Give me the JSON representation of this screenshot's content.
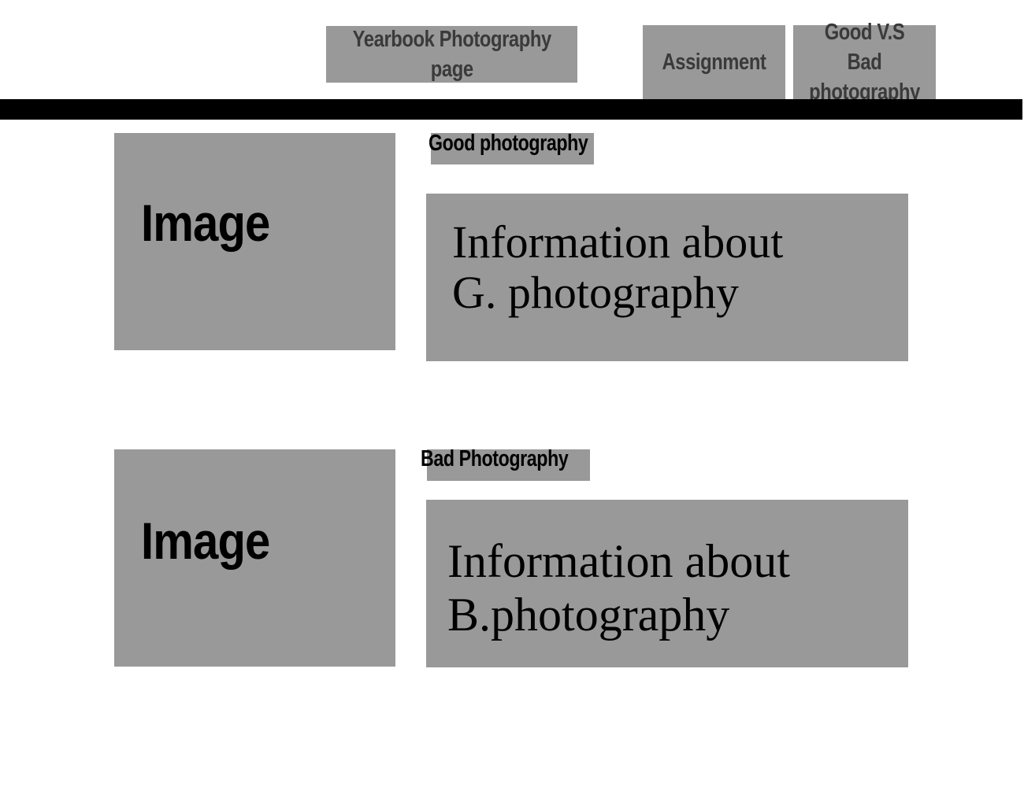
{
  "nav": {
    "title_label": "Yearbook Photography\npage",
    "assignment_label": "Assignment",
    "compare_label": "Good V.S Bad\nphotography"
  },
  "sections": [
    {
      "tag": "Good photography",
      "image_label": "Image",
      "info_lines": [
        "Information about",
        "G. photography"
      ]
    },
    {
      "tag": "Bad Photography",
      "image_label": "Image",
      "info_lines": [
        "Information about",
        "B.photography"
      ]
    }
  ],
  "colors": {
    "box_gray": "#999999",
    "divider": "#000000",
    "nav_text": "#3a3a3a"
  }
}
